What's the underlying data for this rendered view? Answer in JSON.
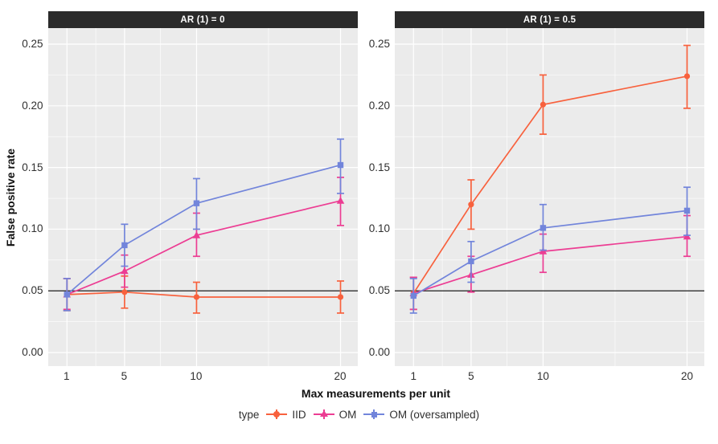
{
  "figure": {
    "y_axis_title": "False positive rate",
    "x_axis_title": "Max measurements per unit",
    "legend": {
      "title": "type",
      "items": [
        {
          "label": "IID",
          "marker": "circle",
          "color": "#F8613D"
        },
        {
          "label": "OM",
          "marker": "triangle",
          "color": "#EC3D93"
        },
        {
          "label": "OM (oversampled)",
          "marker": "square",
          "color": "#7285DB"
        }
      ]
    },
    "colors": {
      "iid": "#F8613D",
      "om": "#EC3D93",
      "om_oversampled": "#7285DB",
      "strip_background": "#2B2B2B",
      "strip_text": "#FFFFFF",
      "panel_background": "#EBEBEB",
      "gridline": "#FFFFFF",
      "reference_line": "#1A1A1A",
      "tick_label": "#303030",
      "title_text": "#111111"
    }
  },
  "chart_data": [
    {
      "type": "line",
      "title": "AR (1) = 0",
      "xlabel": "Max measurements per unit",
      "ylabel": "False positive rate",
      "x": [
        1,
        5,
        10,
        20
      ],
      "x_tick_labels": [
        "1",
        "5",
        "10",
        "20"
      ],
      "y_ticks": [
        0.0,
        0.05,
        0.1,
        0.15,
        0.2,
        0.25
      ],
      "y_tick_labels": [
        "0.00",
        "0.05",
        "0.10",
        "0.15",
        "0.20",
        "0.25"
      ],
      "xlim": [
        -0.3,
        21.2
      ],
      "ylim": [
        -0.011,
        0.263
      ],
      "x_minor": [
        3,
        7.5,
        15
      ],
      "y_minor": [
        0.025,
        0.075,
        0.125,
        0.175,
        0.225
      ],
      "reference_line_y": 0.05,
      "grid": "major+minor",
      "legend_position": "bottom",
      "series": [
        {
          "name": "IID",
          "marker": "circle",
          "color": "#F8613D",
          "values": [
            0.047,
            0.049,
            0.045,
            0.045
          ],
          "ci_low": [
            0.034,
            0.036,
            0.032,
            0.032
          ],
          "ci_high": [
            0.06,
            0.062,
            0.057,
            0.058
          ]
        },
        {
          "name": "OM",
          "marker": "triangle",
          "color": "#EC3D93",
          "values": [
            0.047,
            0.066,
            0.095,
            0.123
          ],
          "ci_low": [
            0.035,
            0.053,
            0.078,
            0.103
          ],
          "ci_high": [
            0.06,
            0.079,
            0.113,
            0.142
          ]
        },
        {
          "name": "OM (oversampled)",
          "marker": "square",
          "color": "#7285DB",
          "values": [
            0.047,
            0.087,
            0.121,
            0.152
          ],
          "ci_low": [
            0.034,
            0.07,
            0.1,
            0.129
          ],
          "ci_high": [
            0.06,
            0.104,
            0.141,
            0.173
          ]
        }
      ]
    },
    {
      "type": "line",
      "title": "AR (1) = 0.5",
      "xlabel": "Max measurements per unit",
      "ylabel": "False positive rate",
      "x": [
        1,
        5,
        10,
        20
      ],
      "x_tick_labels": [
        "1",
        "5",
        "10",
        "20"
      ],
      "y_ticks": [
        0.0,
        0.05,
        0.1,
        0.15,
        0.2,
        0.25
      ],
      "y_tick_labels": [
        "0.00",
        "0.05",
        "0.10",
        "0.15",
        "0.20",
        "0.25"
      ],
      "xlim": [
        -0.3,
        21.2
      ],
      "ylim": [
        -0.011,
        0.263
      ],
      "x_minor": [
        3,
        7.5,
        15
      ],
      "y_minor": [
        0.025,
        0.075,
        0.125,
        0.175,
        0.225
      ],
      "reference_line_y": 0.05,
      "grid": "major+minor",
      "legend_position": "bottom",
      "series": [
        {
          "name": "IID",
          "marker": "circle",
          "color": "#F8613D",
          "values": [
            0.048,
            0.12,
            0.201,
            0.224
          ],
          "ci_low": [
            0.035,
            0.1,
            0.177,
            0.198
          ],
          "ci_high": [
            0.061,
            0.14,
            0.225,
            0.249
          ]
        },
        {
          "name": "OM",
          "marker": "triangle",
          "color": "#EC3D93",
          "values": [
            0.048,
            0.063,
            0.082,
            0.094
          ],
          "ci_low": [
            0.035,
            0.049,
            0.065,
            0.078
          ],
          "ci_high": [
            0.061,
            0.078,
            0.096,
            0.111
          ]
        },
        {
          "name": "OM (oversampled)",
          "marker": "square",
          "color": "#7285DB",
          "values": [
            0.046,
            0.074,
            0.101,
            0.115
          ],
          "ci_low": [
            0.032,
            0.057,
            0.083,
            0.095
          ],
          "ci_high": [
            0.06,
            0.09,
            0.12,
            0.134
          ]
        }
      ]
    }
  ]
}
